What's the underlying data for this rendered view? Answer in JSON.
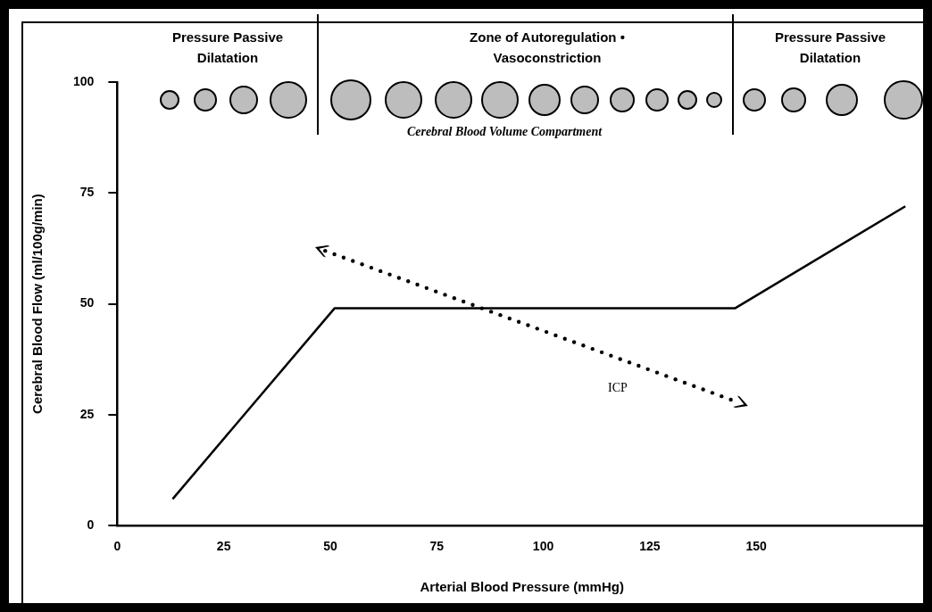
{
  "chart_data": {
    "type": "line",
    "xlabel": "Arterial Blood Pressure (mmHg)",
    "ylabel": "Cerebral Blood Flow (ml/100g/min)",
    "x": [
      13,
      51,
      145,
      185
    ],
    "series": [
      {
        "color": "#000000",
        "values": [
          6,
          49,
          49,
          72
        ]
      }
    ],
    "xlim": [
      0,
      190
    ],
    "xticks": [
      0,
      25,
      50,
      75,
      100,
      125,
      150
    ],
    "ylim": [
      0,
      100
    ],
    "yticks": [
      0,
      25,
      50,
      75,
      100
    ],
    "marker": "none",
    "line_style": "solid",
    "annotations": [
      "Pressure Passive Dilatation",
      "Zone of Autoregulation • Vasoconstriction",
      "Pressure Passive Dilatation",
      "Cerebral Blood Volume Compartment",
      "ICP"
    ]
  }
}
